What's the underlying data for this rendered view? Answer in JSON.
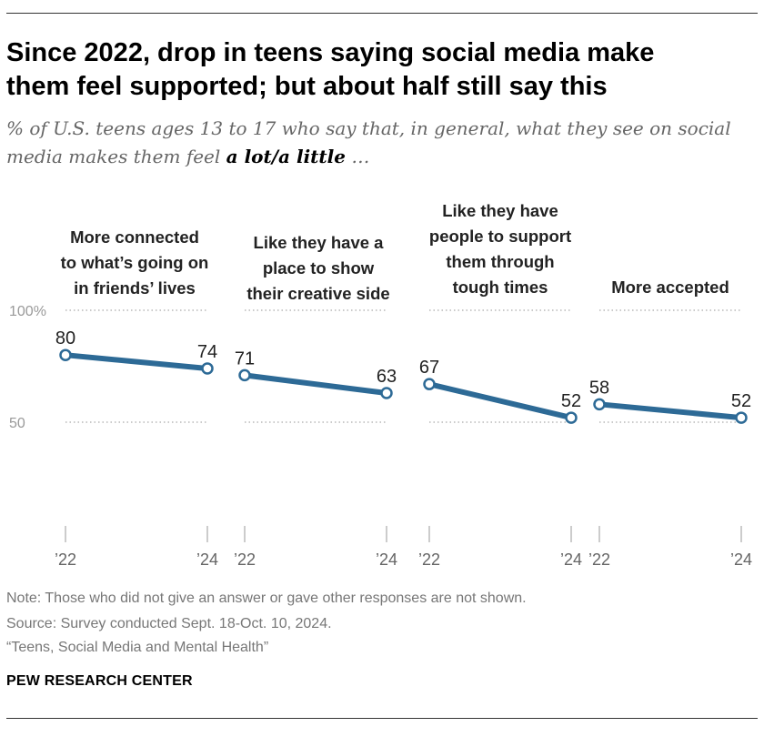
{
  "title_line1": "Since 2022, drop in teens saying social media make",
  "title_line2": "them feel supported; but about half still say this",
  "subtitle_part1": "% of U.S. teens ages 13 to 17 who say that, in general, what they see on social media makes them feel ",
  "subtitle_emph": "a lot/a little",
  "subtitle_part2": " …",
  "panels": [
    {
      "label_lines": [
        "More connected",
        "to what’s going on",
        "in friends’ lives"
      ]
    },
    {
      "label_lines": [
        "Like they have a",
        "place to show",
        "their creative side"
      ]
    },
    {
      "label_lines": [
        "Like they have",
        "people to support",
        "them through",
        "tough times"
      ]
    },
    {
      "label_lines": [
        "More accepted"
      ]
    }
  ],
  "chart_data": {
    "type": "line",
    "title": "Since 2022, drop in teens saying social media make them feel supported; but about half still say this",
    "x": [
      "’22",
      "’24"
    ],
    "ylim": [
      0,
      100
    ],
    "yticks": [
      {
        "value": 100,
        "label": "100%"
      },
      {
        "value": 50,
        "label": "50"
      }
    ],
    "grid": true,
    "color": "#2d6a96",
    "series": [
      {
        "name": "More connected to what’s going on in friends’ lives",
        "values": [
          80,
          74
        ]
      },
      {
        "name": "Like they have a place to show their creative side",
        "values": [
          71,
          63
        ]
      },
      {
        "name": "Like they have people to support them through tough times",
        "values": [
          67,
          52
        ]
      },
      {
        "name": "More accepted",
        "values": [
          58,
          52
        ]
      }
    ]
  },
  "note": "Note: Those who did not give an answer or gave other responses are not shown.",
  "source": "Source: Survey conducted Sept. 18-Oct. 10, 2024.",
  "report": "“Teens, Social Media and Mental Health”",
  "brand": "PEW RESEARCH CENTER"
}
